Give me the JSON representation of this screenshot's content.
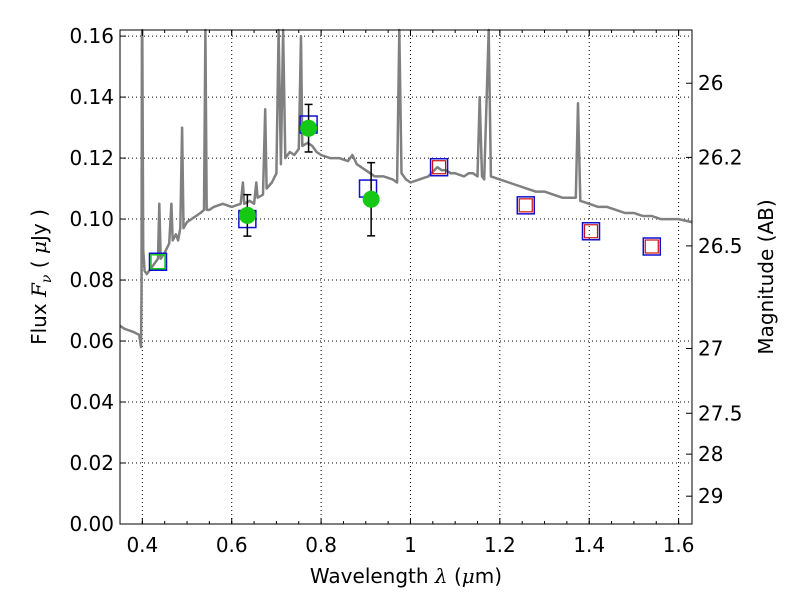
{
  "chart_data": {
    "type": "scatter",
    "xlim": [
      0.35,
      1.63
    ],
    "ylim": [
      0.0,
      0.162
    ],
    "grid": true,
    "xlabel": {
      "text": "Wavelength",
      "symbol": "λ",
      "unit_open": "(",
      "unit_mu": "μ",
      "unit_rest": "m)"
    },
    "ylabel": {
      "text": "Flux",
      "symbol": "F",
      "sub": "ν",
      "unit_open": "(",
      "unit_mu": "μ",
      "unit_rest": "Jy",
      "unit_close": ")"
    },
    "y2label": "Magnitude (AB)",
    "x_ticks": [
      {
        "v": 0.4,
        "label": "0.4"
      },
      {
        "v": 0.6,
        "label": "0.6"
      },
      {
        "v": 0.8,
        "label": "0.8"
      },
      {
        "v": 1.0,
        "label": "1"
      },
      {
        "v": 1.2,
        "label": "1.2"
      },
      {
        "v": 1.4,
        "label": "1.4"
      },
      {
        "v": 1.6,
        "label": "1.6"
      }
    ],
    "y_ticks": [
      {
        "v": 0.0,
        "label": "0.00"
      },
      {
        "v": 0.02,
        "label": "0.02"
      },
      {
        "v": 0.04,
        "label": "0.04"
      },
      {
        "v": 0.06,
        "label": "0.06"
      },
      {
        "v": 0.08,
        "label": "0.08"
      },
      {
        "v": 0.1,
        "label": "0.10"
      },
      {
        "v": 0.12,
        "label": "0.12"
      },
      {
        "v": 0.14,
        "label": "0.14"
      },
      {
        "v": 0.16,
        "label": "0.16"
      }
    ],
    "y2_ticks": [
      {
        "mag": 26,
        "label": "26"
      },
      {
        "mag": 26.2,
        "label": "26.2"
      },
      {
        "mag": 26.5,
        "label": "26.5"
      },
      {
        "mag": 27,
        "label": "27"
      },
      {
        "mag": 27.5,
        "label": "27.5"
      },
      {
        "mag": 28,
        "label": "28"
      },
      {
        "mag": 29,
        "label": "29"
      }
    ],
    "model_spectrum": {
      "color": "#808080",
      "points": [
        [
          0.35,
          0.065
        ],
        [
          0.36,
          0.064
        ],
        [
          0.38,
          0.063
        ],
        [
          0.393,
          0.062
        ],
        [
          0.397,
          0.058
        ],
        [
          0.398,
          0.075
        ],
        [
          0.399,
          0.16
        ],
        [
          0.4,
          0.162
        ],
        [
          0.402,
          0.09
        ],
        [
          0.405,
          0.083
        ],
        [
          0.41,
          0.082
        ],
        [
          0.42,
          0.084
        ],
        [
          0.43,
          0.086
        ],
        [
          0.435,
          0.087
        ],
        [
          0.438,
          0.105
        ],
        [
          0.441,
          0.087
        ],
        [
          0.45,
          0.089
        ],
        [
          0.46,
          0.092
        ],
        [
          0.465,
          0.105
        ],
        [
          0.468,
          0.093
        ],
        [
          0.475,
          0.095
        ],
        [
          0.48,
          0.093
        ],
        [
          0.485,
          0.097
        ],
        [
          0.489,
          0.13
        ],
        [
          0.492,
          0.097
        ],
        [
          0.5,
          0.099
        ],
        [
          0.51,
          0.1
        ],
        [
          0.52,
          0.101
        ],
        [
          0.53,
          0.102
        ],
        [
          0.538,
          0.103
        ],
        [
          0.541,
          0.162
        ],
        [
          0.544,
          0.103
        ],
        [
          0.55,
          0.103
        ],
        [
          0.56,
          0.104
        ],
        [
          0.58,
          0.105
        ],
        [
          0.6,
          0.104
        ],
        [
          0.62,
          0.105
        ],
        [
          0.625,
          0.112
        ],
        [
          0.628,
          0.105
        ],
        [
          0.64,
          0.106
        ],
        [
          0.65,
          0.105
        ],
        [
          0.655,
          0.112
        ],
        [
          0.658,
          0.107
        ],
        [
          0.67,
          0.108
        ],
        [
          0.675,
          0.136
        ],
        [
          0.678,
          0.11
        ],
        [
          0.69,
          0.112
        ],
        [
          0.7,
          0.115
        ],
        [
          0.705,
          0.162
        ],
        [
          0.71,
          0.118
        ],
        [
          0.715,
          0.162
        ],
        [
          0.72,
          0.12
        ],
        [
          0.73,
          0.122
        ],
        [
          0.74,
          0.121
        ],
        [
          0.75,
          0.123
        ],
        [
          0.755,
          0.16
        ],
        [
          0.758,
          0.124
        ],
        [
          0.77,
          0.125
        ],
        [
          0.78,
          0.124
        ],
        [
          0.79,
          0.122
        ],
        [
          0.8,
          0.121
        ],
        [
          0.82,
          0.12
        ],
        [
          0.84,
          0.12
        ],
        [
          0.86,
          0.119
        ],
        [
          0.87,
          0.121
        ],
        [
          0.88,
          0.118
        ],
        [
          0.9,
          0.116
        ],
        [
          0.91,
          0.115
        ],
        [
          0.92,
          0.114
        ],
        [
          0.94,
          0.114
        ],
        [
          0.96,
          0.113
        ],
        [
          0.97,
          0.112
        ],
        [
          0.975,
          0.162
        ],
        [
          0.98,
          0.115
        ],
        [
          0.99,
          0.113
        ],
        [
          1.0,
          0.112
        ],
        [
          1.02,
          0.113
        ],
        [
          1.04,
          0.114
        ],
        [
          1.06,
          0.117
        ],
        [
          1.07,
          0.116
        ],
        [
          1.08,
          0.116
        ],
        [
          1.09,
          0.115
        ],
        [
          1.1,
          0.115
        ],
        [
          1.12,
          0.114
        ],
        [
          1.13,
          0.115
        ],
        [
          1.14,
          0.115
        ],
        [
          1.15,
          0.114
        ],
        [
          1.155,
          0.14
        ],
        [
          1.16,
          0.114
        ],
        [
          1.165,
          0.113
        ],
        [
          1.175,
          0.162
        ],
        [
          1.18,
          0.114
        ],
        [
          1.2,
          0.113
        ],
        [
          1.22,
          0.112
        ],
        [
          1.24,
          0.111
        ],
        [
          1.26,
          0.11
        ],
        [
          1.28,
          0.109
        ],
        [
          1.3,
          0.109
        ],
        [
          1.32,
          0.108
        ],
        [
          1.34,
          0.107
        ],
        [
          1.36,
          0.107
        ],
        [
          1.37,
          0.107
        ],
        [
          1.375,
          0.138
        ],
        [
          1.38,
          0.106
        ],
        [
          1.4,
          0.105
        ],
        [
          1.42,
          0.104
        ],
        [
          1.44,
          0.104
        ],
        [
          1.46,
          0.103
        ],
        [
          1.48,
          0.102
        ],
        [
          1.5,
          0.102
        ],
        [
          1.52,
          0.101
        ],
        [
          1.54,
          0.101
        ],
        [
          1.56,
          0.1
        ],
        [
          1.58,
          0.1
        ],
        [
          1.6,
          0.1
        ],
        [
          1.63,
          0.099
        ]
      ]
    },
    "observed": [
      {
        "x": 0.635,
        "y": 0.1012,
        "err": 0.0068
      },
      {
        "x": 0.772,
        "y": 0.1298,
        "err": 0.0078
      },
      {
        "x": 0.912,
        "y": 0.1065,
        "err": 0.012
      }
    ],
    "observed_color": "#14c814",
    "synthetic": [
      {
        "x": 0.435,
        "y": 0.086
      },
      {
        "x": 0.635,
        "y": 0.1
      },
      {
        "x": 0.772,
        "y": 0.131
      },
      {
        "x": 0.905,
        "y": 0.11
      },
      {
        "x": 1.064,
        "y": 0.117
      },
      {
        "x": 1.258,
        "y": 0.1045
      },
      {
        "x": 1.404,
        "y": 0.096
      },
      {
        "x": 1.54,
        "y": 0.091
      }
    ],
    "synthetic_color": "#1010d0",
    "upper_limits": [
      {
        "x": 1.064,
        "y": 0.117
      },
      {
        "x": 1.258,
        "y": 0.1045
      },
      {
        "x": 1.404,
        "y": 0.096
      },
      {
        "x": 1.54,
        "y": 0.091
      }
    ],
    "upper_limit_color": "#d01010",
    "green_squares": [
      {
        "x": 0.435,
        "y": 0.086
      }
    ]
  }
}
